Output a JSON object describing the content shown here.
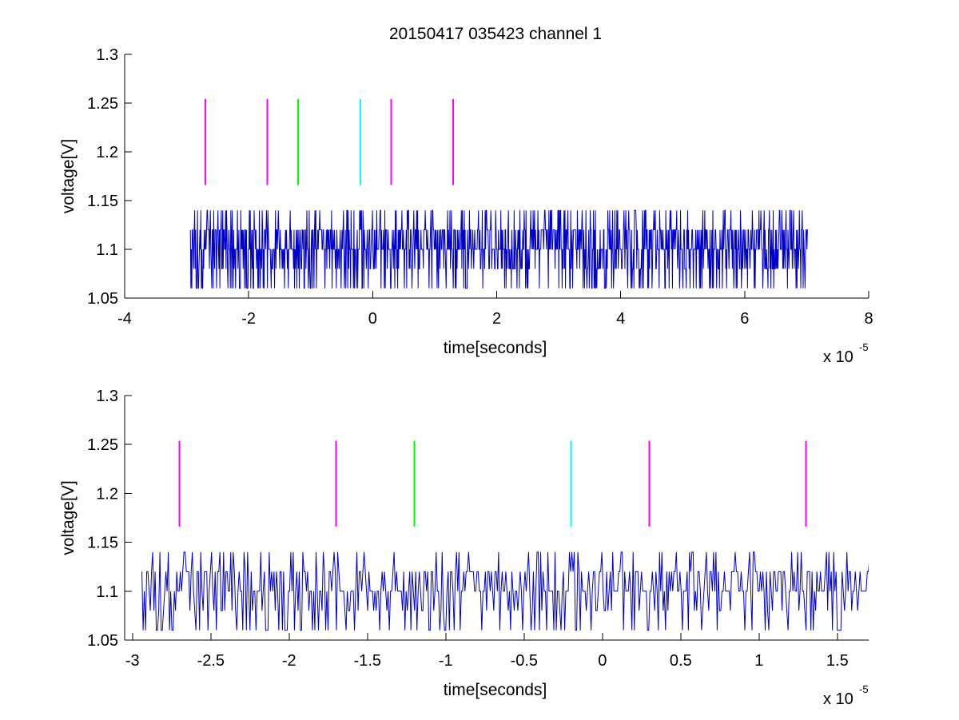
{
  "figure": {
    "title": "20150417 035423 channel 1"
  },
  "chart_data": [
    {
      "type": "line",
      "title": "20150417 035423 channel 1",
      "xlabel": "time[seconds]",
      "ylabel": "voltage[V]",
      "x_multiplier": "x 10",
      "x_exponent": "-5",
      "xlim": [
        -4,
        8
      ],
      "ylim": [
        1.05,
        1.3
      ],
      "x_ticks": [
        -4,
        -2,
        0,
        2,
        4,
        6,
        8
      ],
      "x_tick_labels": [
        "-4",
        "-2",
        "0",
        "2",
        "4",
        "6",
        "8"
      ],
      "y_ticks": [
        1.05,
        1.1,
        1.15,
        1.2,
        1.25,
        1.3
      ],
      "y_tick_labels": [
        "1.05",
        "1.1",
        "1.15",
        "1.2",
        "1.25",
        "1.3"
      ],
      "grid": false,
      "signal": {
        "color": "#0000cc",
        "x_start": -2.94,
        "x_end": 7.02,
        "baseline": 1.1,
        "levels": [
          1.06,
          1.08,
          1.1,
          1.12,
          1.14
        ]
      },
      "markers": [
        {
          "x": -2.7,
          "color": "#ff00ff",
          "y_range": [
            1.166,
            1.254
          ]
        },
        {
          "x": -1.7,
          "color": "#ff00ff",
          "y_range": [
            1.166,
            1.254
          ]
        },
        {
          "x": -1.2,
          "color": "#00ff00",
          "y_range": [
            1.166,
            1.254
          ]
        },
        {
          "x": -0.2,
          "color": "#00ffff",
          "y_range": [
            1.166,
            1.254
          ]
        },
        {
          "x": 0.3,
          "color": "#ff00ff",
          "y_range": [
            1.166,
            1.254
          ]
        },
        {
          "x": 1.3,
          "color": "#ff00ff",
          "y_range": [
            1.166,
            1.254
          ]
        }
      ]
    },
    {
      "type": "line",
      "title": "",
      "xlabel": "time[seconds]",
      "ylabel": "voltage[V]",
      "x_multiplier": "x 10",
      "x_exponent": "-5",
      "xlim": [
        -3.05,
        1.7
      ],
      "ylim": [
        1.05,
        1.3
      ],
      "x_ticks": [
        -3,
        -2.5,
        -2,
        -1.5,
        -1,
        -0.5,
        0,
        0.5,
        1,
        1.5
      ],
      "x_tick_labels": [
        "-3",
        "-2.5",
        "-2",
        "-1.5",
        "-1",
        "-0.5",
        "0",
        "0.5",
        "1",
        "1.5"
      ],
      "y_ticks": [
        1.05,
        1.1,
        1.15,
        1.2,
        1.25,
        1.3
      ],
      "y_tick_labels": [
        "1.05",
        "1.1",
        "1.15",
        "1.2",
        "1.25",
        "1.3"
      ],
      "grid": false,
      "signal": {
        "color": "#0000cc",
        "x_start": -2.94,
        "x_end": 1.7,
        "baseline": 1.1,
        "levels": [
          1.06,
          1.08,
          1.1,
          1.12,
          1.14
        ]
      },
      "markers": [
        {
          "x": -2.7,
          "color": "#ff00ff",
          "y_range": [
            1.166,
            1.254
          ]
        },
        {
          "x": -1.7,
          "color": "#ff00ff",
          "y_range": [
            1.166,
            1.254
          ]
        },
        {
          "x": -1.2,
          "color": "#00ff00",
          "y_range": [
            1.166,
            1.254
          ]
        },
        {
          "x": -0.2,
          "color": "#00ffff",
          "y_range": [
            1.166,
            1.254
          ]
        },
        {
          "x": 0.3,
          "color": "#ff00ff",
          "y_range": [
            1.166,
            1.254
          ]
        },
        {
          "x": 1.3,
          "color": "#ff00ff",
          "y_range": [
            1.166,
            1.254
          ]
        }
      ]
    }
  ]
}
